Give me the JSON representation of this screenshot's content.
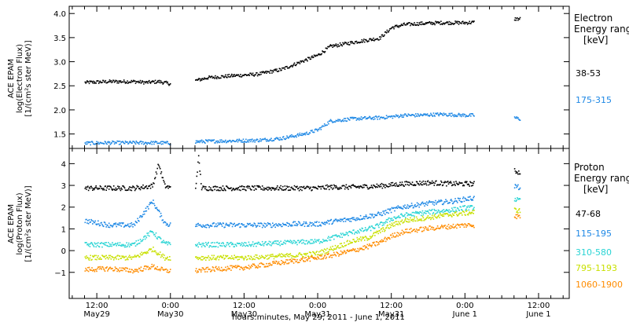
{
  "x_axis": {
    "ticks": [
      {
        "t": -12,
        "line1": "12:00",
        "line2": "May29"
      },
      {
        "t": 0,
        "line1": "0:00",
        "line2": "May30"
      },
      {
        "t": 12,
        "line1": "12:00",
        "line2": "May30"
      },
      {
        "t": 24,
        "line1": "0:00",
        "line2": "May31"
      },
      {
        "t": 36,
        "line1": "12:00",
        "line2": "May31"
      },
      {
        "t": 48,
        "line1": "0:00",
        "line2": "June 1"
      },
      {
        "t": 60,
        "line1": "12:00",
        "line2": "June 1"
      }
    ],
    "range": [
      -16.5,
      65
    ],
    "label": "hours:minutes, May 29, 2011 - June  1, 2011"
  },
  "colors": {
    "black": "#000000",
    "blue": "#1e88e5",
    "cyan": "#2ad4d4",
    "yellow": "#c8e000",
    "orange": "#ff8c00"
  },
  "chart_data": [
    {
      "type": "scatter",
      "panel": "electron",
      "ylabel_line1": "ACE EPAM",
      "ylabel_line2": "log(Electron Flux)",
      "ylabel_line3": "[1/(cm²s ster MeV)]",
      "ylim": [
        1.2,
        4.15
      ],
      "yticks": [
        1.5,
        2.0,
        2.5,
        3.0,
        3.5,
        4.0
      ],
      "ytick_labels": [
        "1.5",
        "2.0",
        "2.5",
        "3.0",
        "3.5",
        "4.0"
      ],
      "legend_title_line1": "Electron",
      "legend_title_line2": "Energy range",
      "legend_title_line3": "[keV]",
      "series": [
        {
          "name": "38-53",
          "color": "#000000",
          "x": [
            -14,
            -10,
            -6,
            -4,
            -2,
            0,
            2,
            4,
            6,
            10,
            14,
            18,
            22,
            24,
            26,
            30,
            34,
            36,
            38,
            40,
            44,
            48,
            49.5,
            56,
            57
          ],
          "y": [
            2.58,
            2.6,
            2.6,
            2.58,
            2.6,
            2.55,
            null,
            2.62,
            2.68,
            2.72,
            2.75,
            2.85,
            3.05,
            3.15,
            3.33,
            3.42,
            3.5,
            3.72,
            3.78,
            3.8,
            3.82,
            3.82,
            3.83,
            3.9,
            3.9
          ]
        },
        {
          "name": "175-315",
          "color": "#1e88e5",
          "x": [
            -14,
            -10,
            -6,
            -4,
            -2,
            0,
            2,
            4,
            6,
            10,
            14,
            18,
            22,
            24,
            26,
            30,
            34,
            36,
            38,
            40,
            44,
            48,
            49.5,
            56,
            57
          ],
          "y": [
            1.32,
            1.33,
            1.33,
            1.33,
            1.33,
            1.32,
            null,
            1.35,
            1.36,
            1.37,
            1.38,
            1.42,
            1.52,
            1.6,
            1.78,
            1.83,
            1.85,
            1.87,
            1.9,
            1.9,
            1.92,
            1.9,
            1.9,
            1.85,
            1.82
          ]
        }
      ]
    },
    {
      "type": "scatter",
      "panel": "proton",
      "ylabel_line1": "ACE EPAM",
      "ylabel_line2": "log(Proton Flux)",
      "ylabel_line3": "[1/(cm²s ster MeV)]",
      "ylim": [
        -2.2,
        4.7
      ],
      "yticks": [
        -1,
        0,
        1,
        2,
        3,
        4
      ],
      "ytick_labels": [
        "−1",
        "0",
        "1",
        "2",
        "3",
        "4"
      ],
      "legend_title_line1": "Proton",
      "legend_title_line2": "Energy range",
      "legend_title_line3": "[keV]",
      "series": [
        {
          "name": "47-68",
          "color": "#000000",
          "x": [
            -14,
            -10,
            -6,
            -3,
            -2,
            -1,
            0,
            2,
            4,
            4.5,
            5,
            8,
            12,
            16,
            20,
            24,
            26,
            30,
            34,
            36,
            38,
            42,
            46,
            48,
            49.5,
            56,
            57
          ],
          "y": [
            2.9,
            2.9,
            2.9,
            3.0,
            4.0,
            3.0,
            2.9,
            null,
            2.9,
            4.3,
            2.9,
            2.9,
            2.9,
            2.9,
            2.9,
            2.9,
            2.95,
            2.95,
            3.0,
            3.05,
            3.1,
            3.15,
            3.1,
            3.1,
            3.1,
            3.7,
            3.6
          ]
        },
        {
          "name": "115-195",
          "color": "#1e88e5",
          "x": [
            -14,
            -10,
            -6,
            -3,
            -2,
            -1,
            0,
            2,
            4,
            8,
            12,
            16,
            20,
            24,
            26,
            30,
            32,
            34,
            36,
            38,
            42,
            46,
            48,
            49.5,
            56,
            57
          ],
          "y": [
            1.4,
            1.2,
            1.2,
            2.3,
            1.8,
            1.3,
            1.2,
            null,
            1.2,
            1.2,
            1.2,
            1.2,
            1.25,
            1.25,
            1.35,
            1.5,
            1.6,
            1.7,
            1.9,
            2.05,
            2.2,
            2.3,
            2.4,
            2.45,
            3.0,
            2.9
          ]
        },
        {
          "name": "310-580",
          "color": "#2ad4d4",
          "x": [
            -14,
            -10,
            -6,
            -3,
            -2,
            -1,
            0,
            2,
            4,
            8,
            12,
            16,
            20,
            24,
            26,
            30,
            32,
            34,
            36,
            38,
            42,
            46,
            48,
            49.5,
            56,
            57
          ],
          "y": [
            0.3,
            0.3,
            0.3,
            0.9,
            0.6,
            0.35,
            0.3,
            null,
            0.3,
            0.3,
            0.3,
            0.35,
            0.4,
            0.45,
            0.6,
            0.9,
            1.0,
            1.2,
            1.5,
            1.65,
            1.8,
            1.9,
            2.0,
            2.0,
            2.4,
            2.3
          ]
        },
        {
          "name": "795-1193",
          "color": "#c8e000",
          "x": [
            -14,
            -10,
            -6,
            -3,
            -2,
            -1,
            0,
            2,
            4,
            8,
            12,
            16,
            20,
            24,
            26,
            30,
            32,
            34,
            36,
            38,
            42,
            46,
            48,
            49.5,
            56,
            57
          ],
          "y": [
            -0.3,
            -0.3,
            -0.3,
            0.1,
            -0.1,
            -0.3,
            -0.3,
            null,
            -0.3,
            -0.3,
            -0.3,
            -0.25,
            -0.2,
            -0.1,
            0.1,
            0.5,
            0.6,
            0.9,
            1.2,
            1.4,
            1.55,
            1.7,
            1.75,
            1.8,
            1.9,
            1.85
          ]
        },
        {
          "name": "1060-1900",
          "color": "#ff8c00",
          "x": [
            -14,
            -10,
            -6,
            -3,
            -2,
            -1,
            0,
            2,
            4,
            8,
            12,
            16,
            20,
            24,
            26,
            30,
            32,
            34,
            36,
            38,
            42,
            46,
            48,
            49.5,
            56,
            57
          ],
          "y": [
            -0.85,
            -0.8,
            -0.9,
            -0.7,
            -0.8,
            -0.9,
            -0.9,
            null,
            -0.9,
            -0.8,
            -0.75,
            -0.6,
            -0.45,
            -0.3,
            -0.2,
            0.05,
            0.2,
            0.4,
            0.7,
            0.9,
            1.05,
            1.15,
            1.2,
            1.2,
            1.6,
            1.6
          ]
        }
      ]
    }
  ]
}
